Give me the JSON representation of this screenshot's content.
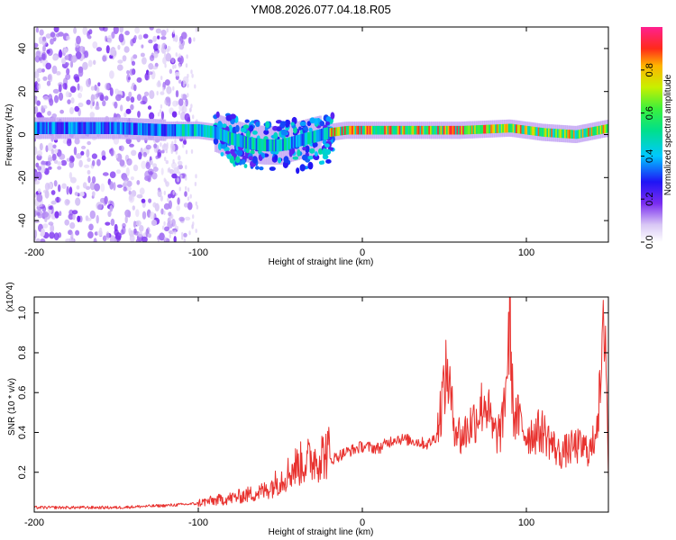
{
  "chart_data": [
    {
      "type": "heatmap",
      "title": "YM08.2026.077.04.18.R05",
      "xlabel": "Height of straight line (km)",
      "ylabel": "Frequency (Hz)",
      "xlim": [
        -200,
        150
      ],
      "ylim": [
        -50,
        50
      ],
      "x_ticks": [
        -200,
        -100,
        0,
        100
      ],
      "x_tick_labels": [
        "-200",
        "-100",
        "0",
        "100"
      ],
      "y_ticks": [
        -40,
        -20,
        0,
        20,
        40
      ],
      "y_tick_labels": [
        "-40",
        "-20",
        "0",
        "20",
        "40"
      ],
      "colorbar": {
        "label": "Normalized spectral amplitude",
        "range": [
          0,
          1
        ],
        "ticks": [
          0,
          0.2,
          0.4,
          0.6,
          0.8
        ],
        "tick_labels": [
          "0.0",
          "0.2",
          "0.4",
          "0.6",
          "0.8"
        ]
      },
      "ridge_frequency_hz": {
        "x": [
          -200,
          -180,
          -150,
          -120,
          -100,
          -90,
          -80,
          -70,
          -60,
          -50,
          -40,
          -30,
          -20,
          -10,
          0,
          10,
          30,
          60,
          90,
          110,
          130,
          150
        ],
        "y": [
          3,
          3,
          3,
          2,
          2,
          1,
          -2,
          -4,
          -5,
          -5,
          -3,
          -1,
          1,
          2,
          2,
          2,
          2,
          2,
          3,
          1,
          0,
          3
        ]
      }
    },
    {
      "type": "line",
      "xlabel": "Height of straight line (km)",
      "ylabel": "SNR (10 * v/v)",
      "y_multiplier": "(x10^4)",
      "xlim": [
        -200,
        150
      ],
      "ylim": [
        0,
        1.08
      ],
      "x_ticks": [
        -200,
        -100,
        0,
        100
      ],
      "x_tick_labels": [
        "-200",
        "-100",
        "0",
        "100"
      ],
      "y_ticks": [
        0.2,
        0.4,
        0.6,
        0.8,
        1.0
      ],
      "y_tick_labels": [
        "0.2",
        "0.4",
        "0.6",
        "0.8",
        "1.0"
      ],
      "series": [
        {
          "name": "SNR",
          "color": "#e8322f",
          "x": [
            -200,
            -150,
            -120,
            -100,
            -80,
            -60,
            -50,
            -40,
            -30,
            -20,
            -10,
            0,
            10,
            20,
            30,
            40,
            45,
            50,
            52,
            55,
            60,
            70,
            75,
            80,
            85,
            88,
            90,
            92,
            95,
            100,
            110,
            120,
            130,
            140,
            145,
            148,
            150
          ],
          "y": [
            0.02,
            0.02,
            0.03,
            0.04,
            0.06,
            0.09,
            0.14,
            0.2,
            0.23,
            0.26,
            0.3,
            0.33,
            0.32,
            0.37,
            0.36,
            0.34,
            0.38,
            0.66,
            0.73,
            0.5,
            0.38,
            0.5,
            0.58,
            0.4,
            0.42,
            0.72,
            0.98,
            0.5,
            0.48,
            0.4,
            0.42,
            0.3,
            0.34,
            0.32,
            0.6,
            1.05,
            0.2
          ]
        }
      ]
    }
  ]
}
